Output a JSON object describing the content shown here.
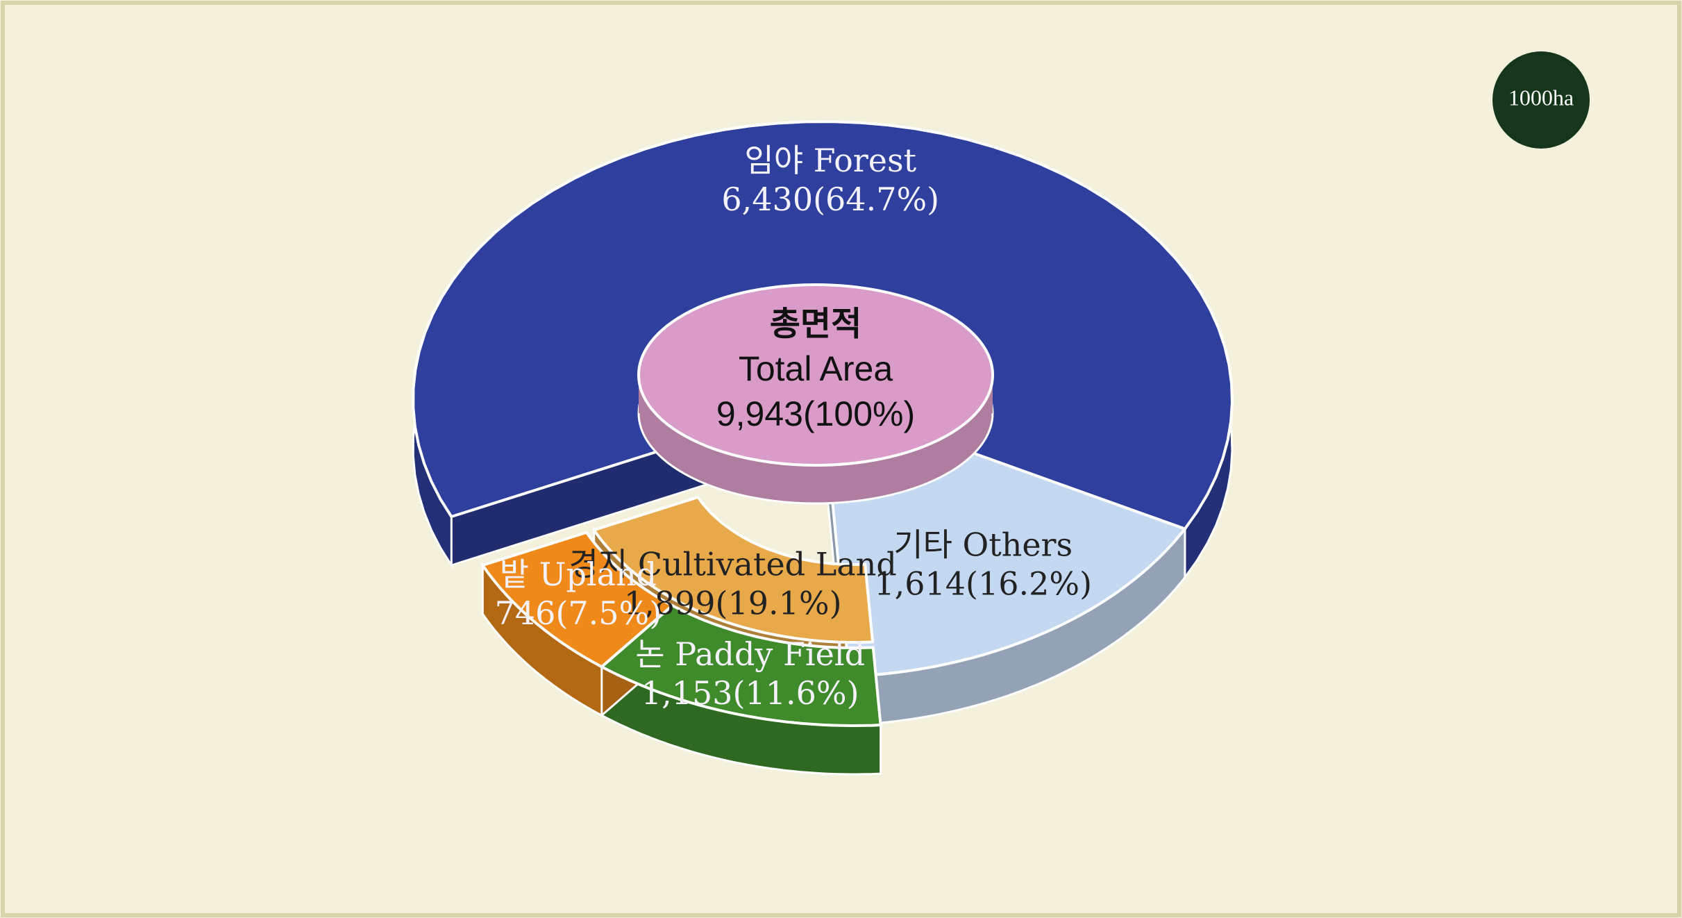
{
  "chart_data": {
    "type": "sunburst",
    "unit": "1000ha",
    "center": {
      "name_ko": "총면적",
      "name": "Total Area",
      "value": 9943,
      "value_label": "9,943(100%)",
      "color": "#d99cc8"
    },
    "categories": [
      "임야 Forest",
      "기타 Others",
      "경지 Cultivated Land"
    ],
    "values": [
      6430,
      1614,
      1899
    ],
    "value_labels": [
      "6,430(64.7%)",
      "1,614(16.2%)",
      "1,899(19.1%)"
    ],
    "colors": [
      "#2f3f9e",
      "#c5d8f2",
      "#e8a94a"
    ],
    "children": {
      "parent": 2,
      "categories": [
        "논 Paddy Field",
        "밭 Upland"
      ],
      "values": [
        1153,
        746
      ],
      "value_labels": [
        "1,153(11.6%)",
        "746(7.5%)"
      ],
      "colors": [
        "#3f8a2a",
        "#ef8a1a"
      ]
    }
  }
}
